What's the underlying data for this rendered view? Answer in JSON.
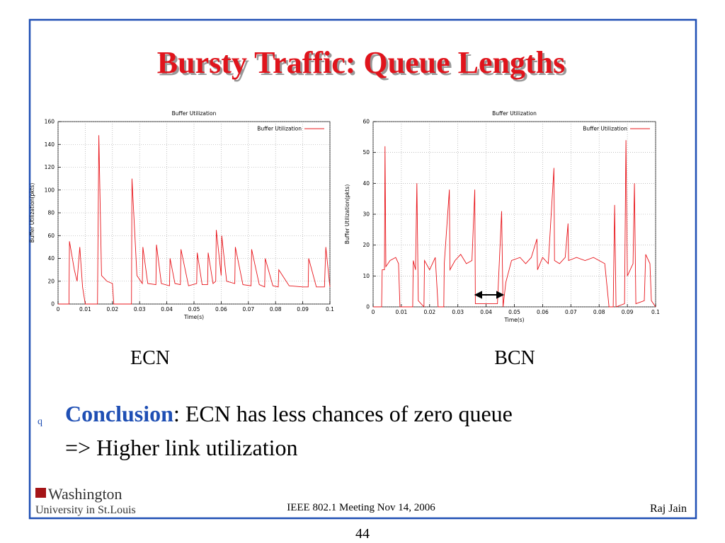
{
  "slide": {
    "title": "Bursty Traffic: Queue Lengths",
    "captions": [
      "ECN",
      "BCN"
    ],
    "bullet_marker": "q",
    "bullet_bold": "Conclusion",
    "bullet_rest": ": ECN has less chances of zero queue",
    "bullet_line2": "=> Higher link utilization"
  },
  "footer": {
    "logo_line1": "Washington",
    "logo_line2": "University in St.Louis",
    "meeting": "IEEE 802.1 Meeting  Nov 14, 2006",
    "author": "Raj Jain",
    "page": "44"
  },
  "chart_data": [
    {
      "type": "line",
      "title": "Buffer Utilization",
      "x_label": "Time(s)",
      "y_label": "Buffer Utilization(pkts)",
      "grid": true,
      "legend": "upper right",
      "xlim": [
        0,
        0.1
      ],
      "xticks": [
        0,
        0.01,
        0.02,
        0.03,
        0.04,
        0.05,
        0.06,
        0.07,
        0.08,
        0.09,
        0.1
      ],
      "ylim": [
        0,
        160
      ],
      "yticks": [
        0,
        20,
        40,
        60,
        80,
        100,
        120,
        140,
        160
      ],
      "x": [
        0,
        0.004,
        0.0042,
        0.006,
        0.007,
        0.008,
        0.009,
        0.01,
        0.0145,
        0.015,
        0.016,
        0.018,
        0.02,
        0.0205,
        0.027,
        0.0272,
        0.029,
        0.031,
        0.0312,
        0.033,
        0.036,
        0.0362,
        0.038,
        0.041,
        0.0412,
        0.043,
        0.045,
        0.0452,
        0.048,
        0.051,
        0.0512,
        0.053,
        0.055,
        0.0552,
        0.057,
        0.058,
        0.0582,
        0.06,
        0.0602,
        0.062,
        0.065,
        0.0652,
        0.068,
        0.071,
        0.0712,
        0.074,
        0.076,
        0.0762,
        0.079,
        0.081,
        0.0812,
        0.085,
        0.09,
        0.092,
        0.0922,
        0.095,
        0.098,
        0.0985,
        0.1
      ],
      "series": [
        {
          "name": "Buffer Utilization",
          "color": "#e8141a",
          "values": [
            0,
            0,
            55,
            30,
            20,
            50,
            15,
            0,
            0,
            148,
            25,
            20,
            18,
            0,
            0,
            110,
            25,
            18,
            50,
            18,
            17,
            52,
            18,
            16,
            40,
            18,
            17,
            48,
            16,
            18,
            45,
            17,
            17,
            45,
            18,
            20,
            65,
            25,
            60,
            20,
            18,
            50,
            17,
            16,
            48,
            17,
            15,
            40,
            16,
            15,
            30,
            16,
            15,
            15,
            40,
            15,
            15,
            50,
            15
          ]
        }
      ]
    },
    {
      "type": "line",
      "title": "Buffer Utilization",
      "x_label": "Time(s)",
      "y_label": "Buffer Utilization(pkts)",
      "grid": true,
      "legend": "upper right",
      "xlim": [
        0,
        0.1
      ],
      "xticks": [
        0,
        0.01,
        0.02,
        0.03,
        0.04,
        0.05,
        0.06,
        0.07,
        0.08,
        0.09,
        0.1
      ],
      "ylim": [
        0,
        60
      ],
      "yticks": [
        0,
        10,
        20,
        30,
        40,
        50,
        60
      ],
      "x": [
        0,
        0.003,
        0.0032,
        0.004,
        0.0042,
        0.0045,
        0.006,
        0.008,
        0.009,
        0.0095,
        0.014,
        0.0142,
        0.015,
        0.0155,
        0.016,
        0.018,
        0.0182,
        0.02,
        0.022,
        0.023,
        0.025,
        0.0252,
        0.027,
        0.0272,
        0.029,
        0.031,
        0.033,
        0.035,
        0.036,
        0.0362,
        0.04,
        0.044,
        0.0455,
        0.046,
        0.047,
        0.049,
        0.052,
        0.054,
        0.056,
        0.058,
        0.0582,
        0.06,
        0.062,
        0.064,
        0.0642,
        0.066,
        0.068,
        0.069,
        0.0692,
        0.072,
        0.075,
        0.078,
        0.08,
        0.082,
        0.0835,
        0.085,
        0.0855,
        0.086,
        0.089,
        0.0895,
        0.09,
        0.092,
        0.0925,
        0.093,
        0.096,
        0.0965,
        0.098,
        0.0985,
        0.1
      ],
      "series": [
        {
          "name": "Buffer Utilization",
          "color": "#e8141a",
          "values": [
            0,
            0,
            12,
            12,
            52,
            13,
            15,
            16,
            14,
            0,
            0,
            15,
            12,
            40,
            2,
            0,
            15,
            12,
            16,
            0,
            0,
            14,
            38,
            12,
            15,
            17,
            14,
            15,
            38,
            1,
            1,
            1,
            31,
            0,
            8,
            15,
            16,
            14,
            16,
            22,
            12,
            16,
            14,
            45,
            15,
            14,
            16,
            27,
            15,
            16,
            15,
            16,
            15,
            14,
            0,
            0,
            33,
            0,
            1,
            54,
            10,
            14,
            40,
            1,
            2,
            17,
            14,
            2,
            0
          ]
        }
      ]
    }
  ]
}
